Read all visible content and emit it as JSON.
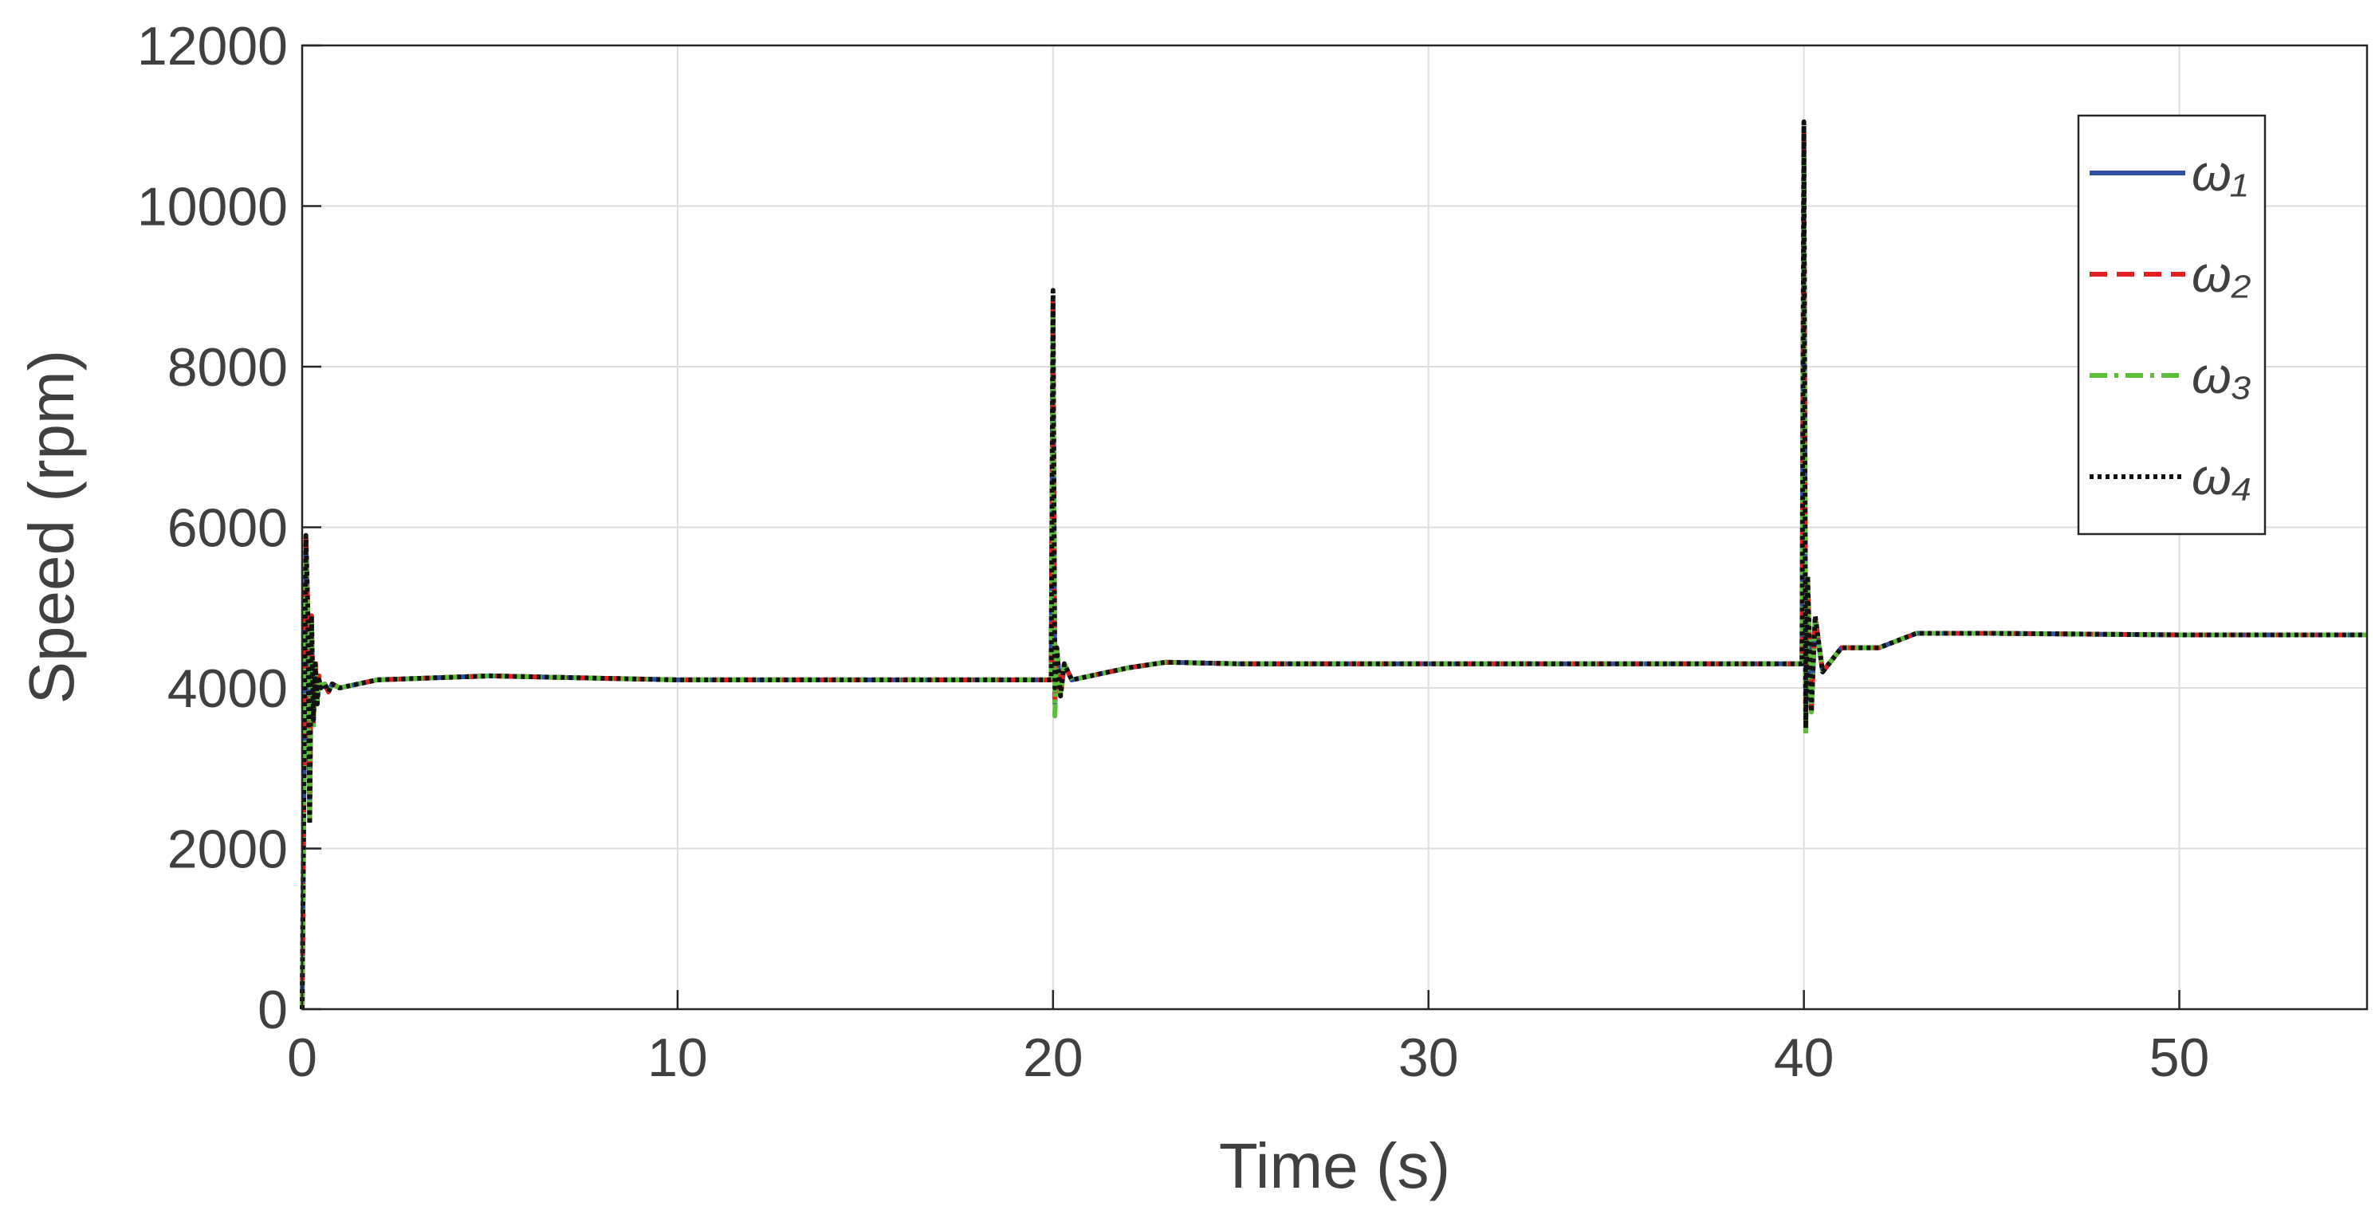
{
  "chart_data": {
    "type": "line",
    "x_label": "Time (s)",
    "y_label": "Speed (rpm)",
    "xlim": [
      0,
      55
    ],
    "ylim": [
      0,
      12000
    ],
    "xticks": [
      0,
      10,
      20,
      30,
      40,
      50
    ],
    "yticks": [
      0,
      2000,
      4000,
      6000,
      8000,
      10000,
      12000
    ],
    "grid": true,
    "legend": "upper-right",
    "x": [
      0,
      0.05,
      0.1,
      0.15,
      0.2,
      0.25,
      0.3,
      0.35,
      0.4,
      0.45,
      0.5,
      0.6,
      0.7,
      0.8,
      1,
      2,
      5,
      10,
      15,
      19.95,
      20,
      20.05,
      20.1,
      20.2,
      20.3,
      20.5,
      21,
      22,
      23,
      25,
      30,
      35,
      39.95,
      40,
      40.05,
      40.1,
      40.2,
      40.3,
      40.5,
      41,
      42,
      43,
      45,
      50,
      55
    ],
    "series": [
      {
        "name": "ω₁",
        "color": "#2f4fa0",
        "dash": "solid",
        "values": [
          0,
          2900,
          5800,
          4900,
          2400,
          4800,
          3600,
          4300,
          3850,
          4100,
          4000,
          4050,
          3960,
          4050,
          4000,
          4100,
          4150,
          4100,
          4100,
          4100,
          8700,
          3800,
          4500,
          3950,
          4300,
          4100,
          4150,
          4250,
          4320,
          4300,
          4300,
          4300,
          4300,
          10800,
          3600,
          5300,
          3750,
          4850,
          4200,
          4500,
          4500,
          4680,
          4680,
          4660,
          4660
        ]
      },
      {
        "name": "ω₂",
        "color": "#e02020",
        "dash": "dashed",
        "values": [
          0,
          2800,
          5850,
          5000,
          2300,
          4900,
          3550,
          4350,
          3800,
          4150,
          4000,
          4050,
          3950,
          4050,
          4000,
          4100,
          4150,
          4100,
          4100,
          4100,
          8800,
          3850,
          4500,
          3900,
          4300,
          4100,
          4150,
          4250,
          4320,
          4300,
          4300,
          4300,
          4300,
          10900,
          3550,
          5350,
          3700,
          4900,
          4200,
          4500,
          4500,
          4680,
          4680,
          4660,
          4660
        ]
      },
      {
        "name": "ω₃",
        "color": "#5cbf3a",
        "dash": "dashdot",
        "values": [
          0,
          2700,
          5700,
          4900,
          2400,
          4850,
          3500,
          4300,
          3850,
          4100,
          4000,
          4050,
          3950,
          4050,
          4000,
          4100,
          4150,
          4100,
          4100,
          4100,
          8600,
          3650,
          4500,
          3900,
          4300,
          4100,
          4150,
          4250,
          4320,
          4300,
          4300,
          4300,
          4300,
          10700,
          3400,
          5300,
          3700,
          4850,
          4200,
          4500,
          4500,
          4680,
          4680,
          4660,
          4660
        ]
      },
      {
        "name": "ω₄",
        "color": "#111111",
        "dash": "dotted",
        "values": [
          0,
          3000,
          5900,
          5000,
          2300,
          4900,
          3600,
          4300,
          3800,
          4100,
          4000,
          4050,
          3950,
          4050,
          4000,
          4100,
          4150,
          4100,
          4100,
          4100,
          8950,
          4000,
          4500,
          3900,
          4300,
          4100,
          4150,
          4250,
          4320,
          4300,
          4300,
          4300,
          4300,
          11050,
          3500,
          5400,
          3700,
          4900,
          4200,
          4500,
          4500,
          4680,
          4680,
          4660,
          4660
        ]
      }
    ]
  }
}
